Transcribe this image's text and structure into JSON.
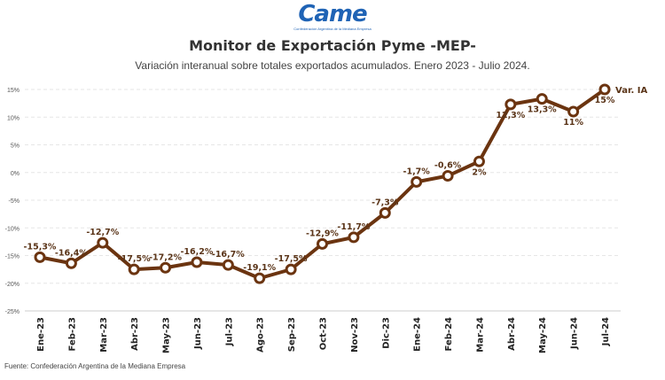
{
  "logo": {
    "word": "Came",
    "subtitle": "Confederación Argentina de la Mediana Empresa"
  },
  "title": "Monitor de Exportación Pyme -MEP-",
  "subtitle": "Variación interanual sobre totales exportados acumulados. Enero 2023 - Julio 2024.",
  "footer": "Fuente: Confederación Argentina de la Mediana Empresa",
  "colors": {
    "line": "#6b3410",
    "label": "#5a3418",
    "grid": "#e6e6e6"
  },
  "chart_data": {
    "type": "line",
    "categories": [
      "Ene-23",
      "Feb-23",
      "Mar-23",
      "Abr-23",
      "May-23",
      "Jun-23",
      "Jul-23",
      "Ago-23",
      "Sep-23",
      "Oct-23",
      "Nov-23",
      "Dic-23",
      "Ene-24",
      "Feb-24",
      "Mar-24",
      "Abr-24",
      "May-24",
      "Jun-24",
      "Jul-24"
    ],
    "series": [
      {
        "name": "Var. IA",
        "values": [
          -15.3,
          -16.4,
          -12.7,
          -17.5,
          -17.2,
          -16.2,
          -16.7,
          -19.1,
          -17.5,
          -12.9,
          -11.7,
          -7.3,
          -1.7,
          -0.6,
          2,
          12.3,
          13.3,
          11,
          15
        ],
        "labels": [
          "-15,3%",
          "-16,4%",
          "-12,7%",
          "-17,5%",
          "-17,2%",
          "-16,2%",
          "-16,7%",
          "-19,1%",
          "-17,5%",
          "-12,9%",
          "-11,7%",
          "-7,3%",
          "-1,7%",
          "-0,6%",
          "2%",
          "12,3%",
          "13,3%",
          "11%",
          "15%"
        ]
      }
    ],
    "ylim": [
      -25,
      15
    ],
    "yticks": [
      15,
      10,
      5,
      0,
      -5,
      -10,
      -15,
      -20,
      -25
    ],
    "ytick_labels": [
      "15%",
      "10%",
      "5%",
      "0%",
      "-5%",
      "-10%",
      "-15%",
      "-20%",
      "-25%"
    ],
    "grid": true,
    "legend": "end-of-line label"
  }
}
